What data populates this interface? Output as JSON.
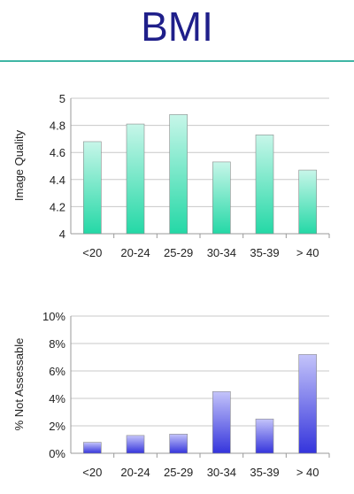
{
  "page": {
    "title": "BMI"
  },
  "chart_data": [
    {
      "type": "bar",
      "title": "",
      "xlabel": "",
      "ylabel": "Image Quality",
      "categories": [
        "<20",
        "20-24",
        "25-29",
        "30-34",
        "35-39",
        "> 40"
      ],
      "values": [
        4.68,
        4.81,
        4.88,
        4.53,
        4.73,
        4.47
      ],
      "ylim": [
        4,
        5
      ],
      "yticks": [
        4,
        4.2,
        4.4,
        4.6,
        4.8,
        5
      ],
      "ytick_labels": [
        "4",
        "4.2",
        "4.4",
        "4.6",
        "4.8",
        "5"
      ],
      "grid": true,
      "color": "#35dcb0"
    },
    {
      "type": "bar",
      "title": "",
      "xlabel": "",
      "ylabel": "% Not Assessable",
      "categories": [
        "<20",
        "20-24",
        "25-29",
        "30-34",
        "35-39",
        "> 40"
      ],
      "values": [
        0.8,
        1.3,
        1.4,
        4.5,
        2.5,
        7.2
      ],
      "ylim": [
        0,
        10
      ],
      "yticks": [
        0,
        2,
        4,
        6,
        8,
        10
      ],
      "ytick_labels": [
        "0%",
        "2%",
        "4%",
        "6%",
        "8%",
        "10%"
      ],
      "grid": true,
      "color": "#4747e0"
    }
  ]
}
